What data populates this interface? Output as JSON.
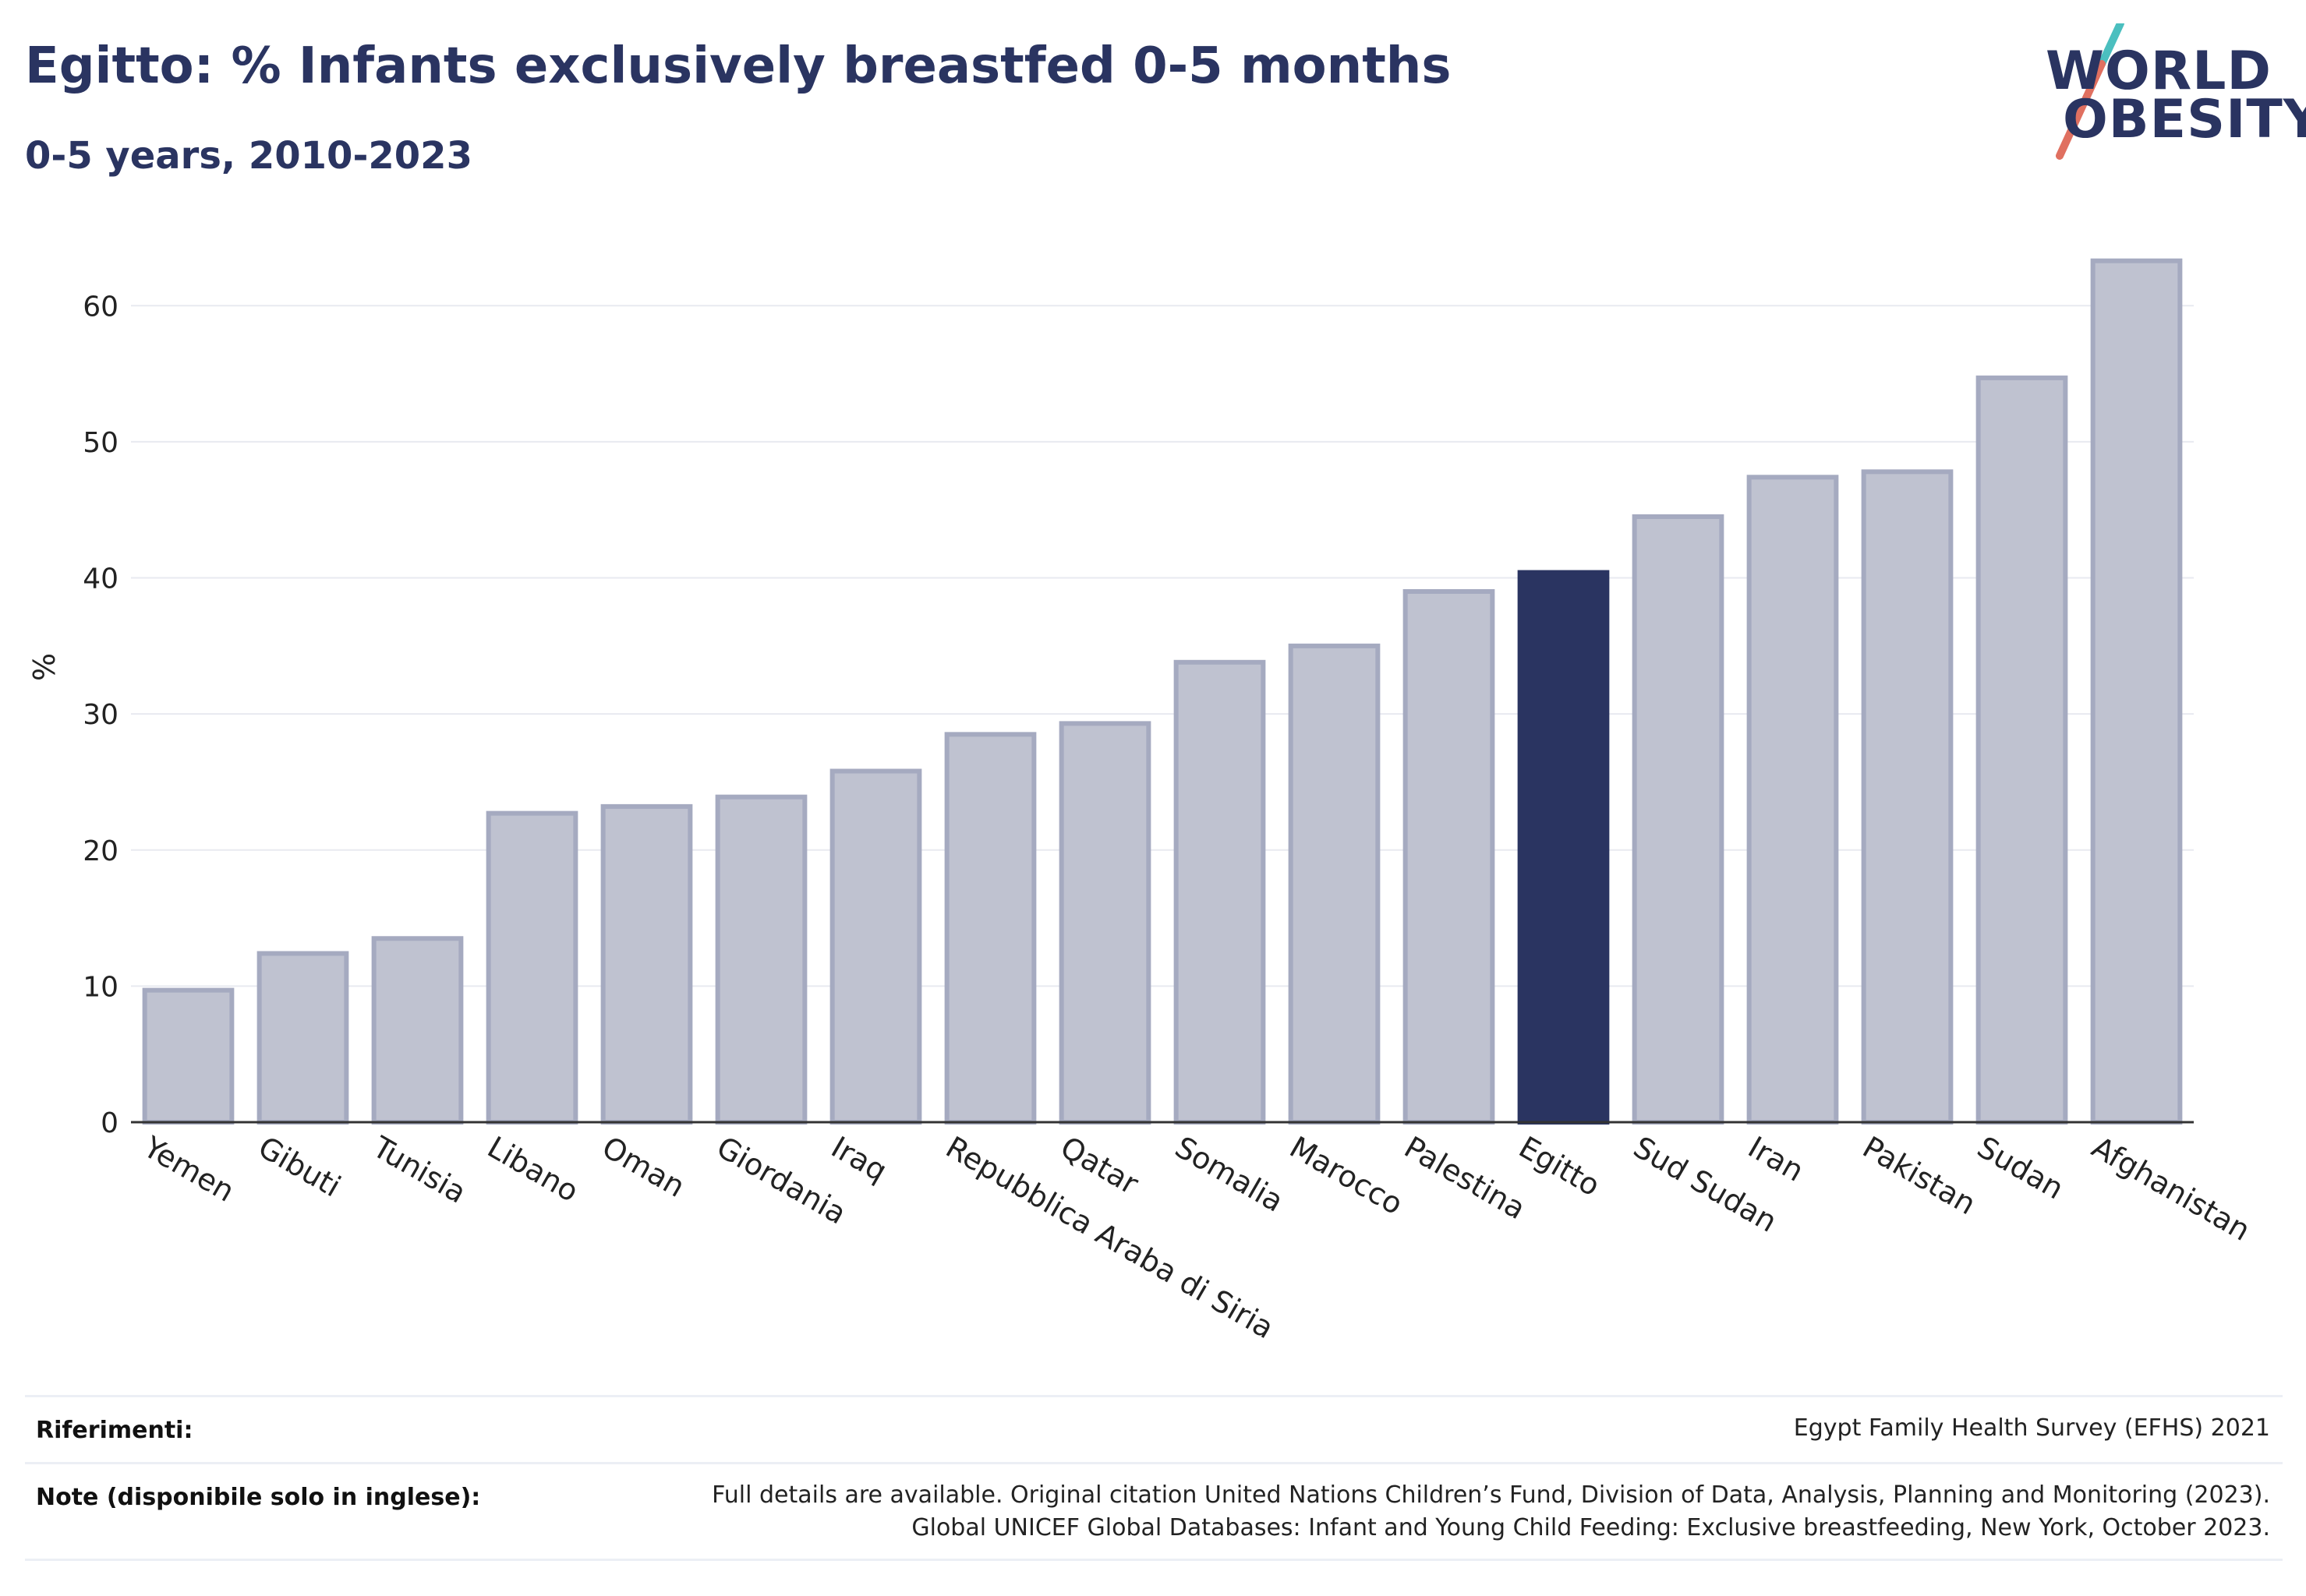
{
  "header": {
    "title": "Egitto: % Infants exclusively breastfed 0-5 months",
    "subtitle": "0-5 years, 2010-2023"
  },
  "logo": {
    "line1": "WORLD",
    "line2": "OBESITY",
    "colors": {
      "text": "#2a3461",
      "slash_top": "#4bbfbf",
      "slash_bottom": "#e07060"
    }
  },
  "chart_data": {
    "type": "bar",
    "ylabel": "%",
    "ylim": [
      0,
      65
    ],
    "yticks": [
      0,
      10,
      20,
      30,
      40,
      50,
      60
    ],
    "grid": true,
    "categories": [
      "Yemen",
      "Gibuti",
      "Tunisia",
      "Libano",
      "Oman",
      "Giordania",
      "Iraq",
      "Repubblica Araba di Siria",
      "Qatar",
      "Somalia",
      "Marocco",
      "Palestina",
      "Egitto",
      "Sud Sudan",
      "Iran",
      "Pakistan",
      "Sudan",
      "Afghanistan"
    ],
    "values": [
      9.7,
      12.4,
      13.5,
      22.7,
      23.2,
      23.9,
      25.8,
      28.5,
      29.3,
      33.8,
      35.0,
      39.0,
      40.4,
      44.5,
      47.4,
      47.8,
      54.7,
      63.3
    ],
    "highlight": "Egitto",
    "colors": {
      "bar": "#bfc2d0",
      "bar_border": "#a5aac0",
      "highlight": "#2a3461"
    }
  },
  "footer": {
    "references_label": "Riferimenti:",
    "references_value": "Egypt Family Health Survey (EFHS) 2021",
    "notes_label": "Note (disponibile solo in inglese):",
    "notes_line1": "Full details are available. Original citation United Nations Children’s Fund, Division of Data, Analysis, Planning and Monitoring (2023).",
    "notes_line2": "Global UNICEF Global Databases: Infant and Young Child Feeding: Exclusive breastfeeding, New York, October 2023."
  }
}
